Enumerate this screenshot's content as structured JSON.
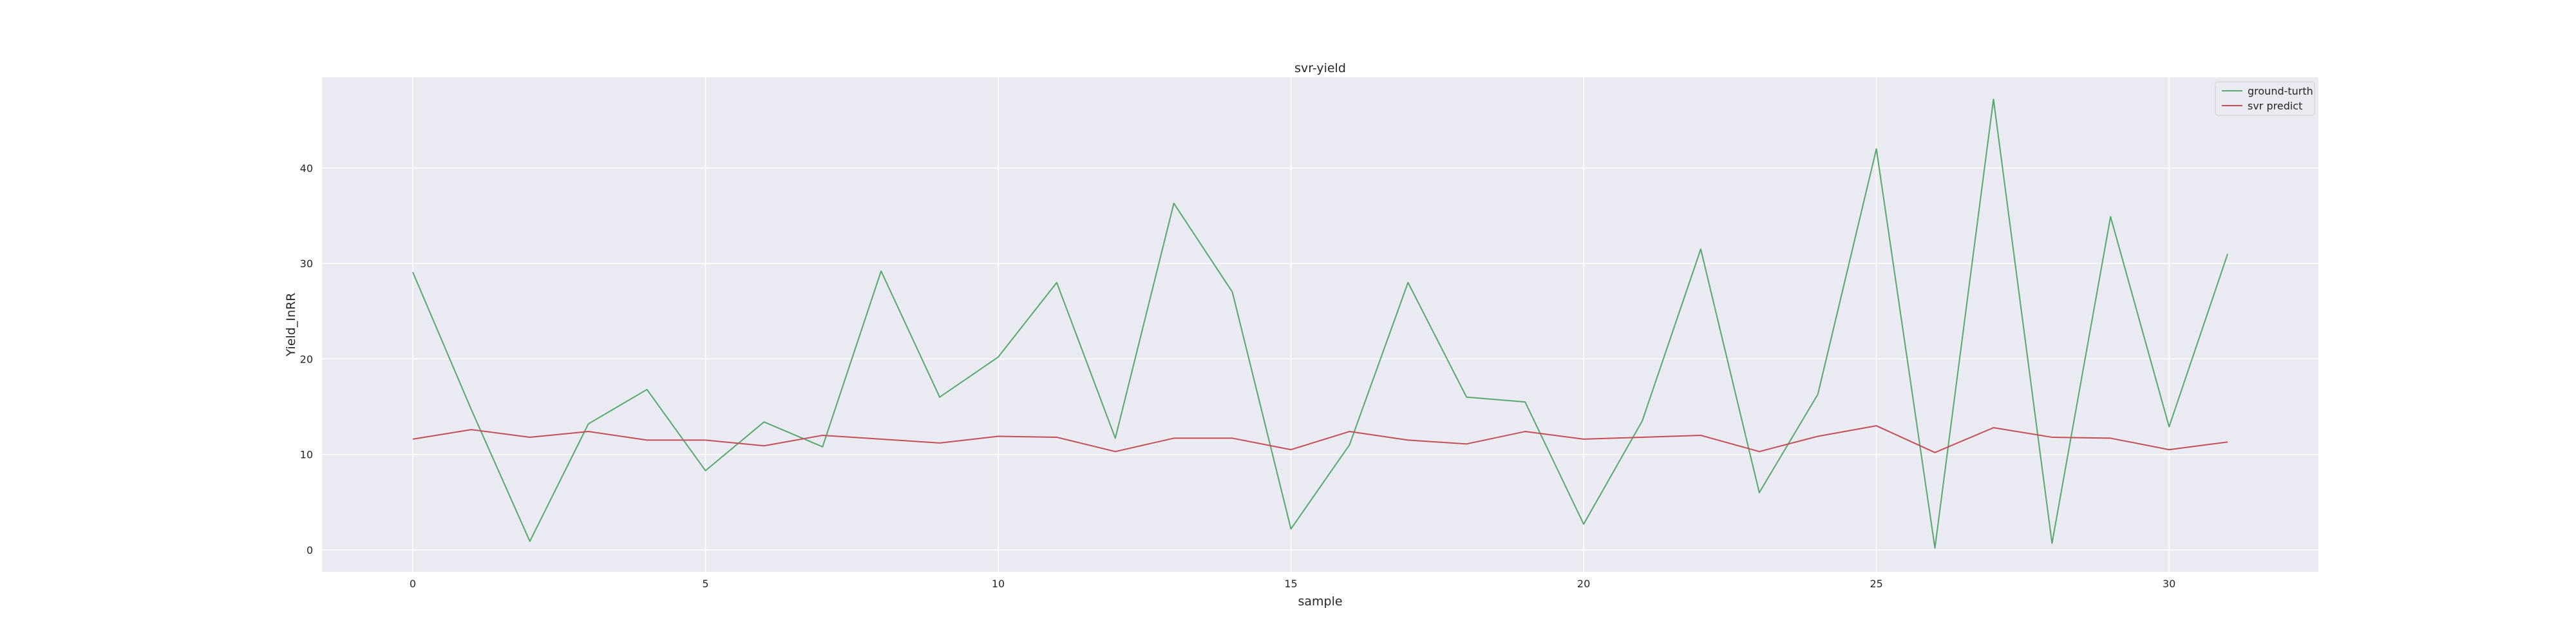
{
  "chart_data": {
    "type": "line",
    "title": "svr-yield",
    "xlabel": "sample",
    "ylabel": "Yield_InRR",
    "xlim": [
      -1.55,
      32.55
    ],
    "ylim": [
      -2.3,
      49.5
    ],
    "xticks": [
      0,
      5,
      10,
      15,
      20,
      25,
      30
    ],
    "yticks": [
      0,
      10,
      20,
      30,
      40
    ],
    "grid": true,
    "legend_position": "top-right",
    "x": [
      0,
      1,
      2,
      3,
      4,
      5,
      6,
      7,
      8,
      9,
      10,
      11,
      12,
      13,
      14,
      15,
      16,
      17,
      18,
      19,
      20,
      21,
      22,
      23,
      24,
      25,
      26,
      27,
      28,
      29,
      30,
      31
    ],
    "series": [
      {
        "name": "ground-turth",
        "color": "#55a868",
        "values": [
          29.1,
          14.7,
          0.9,
          13.2,
          16.8,
          8.3,
          13.4,
          10.8,
          29.2,
          16.0,
          20.2,
          28.0,
          11.7,
          36.3,
          27.0,
          2.2,
          11.0,
          28.0,
          16.0,
          15.5,
          2.7,
          13.5,
          31.5,
          6.0,
          16.3,
          42.0,
          0.2,
          47.2,
          0.7,
          34.9,
          12.9,
          31.0
        ]
      },
      {
        "name": "svr predict",
        "color": "#c44e52",
        "values": [
          11.6,
          12.6,
          11.8,
          12.4,
          11.5,
          11.5,
          10.9,
          12.0,
          11.6,
          11.2,
          11.9,
          11.8,
          10.3,
          11.7,
          11.7,
          10.5,
          12.4,
          11.5,
          11.1,
          12.4,
          11.6,
          11.8,
          12.0,
          10.3,
          11.9,
          13.0,
          10.2,
          12.8,
          11.8,
          11.7,
          10.5,
          11.3
        ]
      }
    ]
  }
}
